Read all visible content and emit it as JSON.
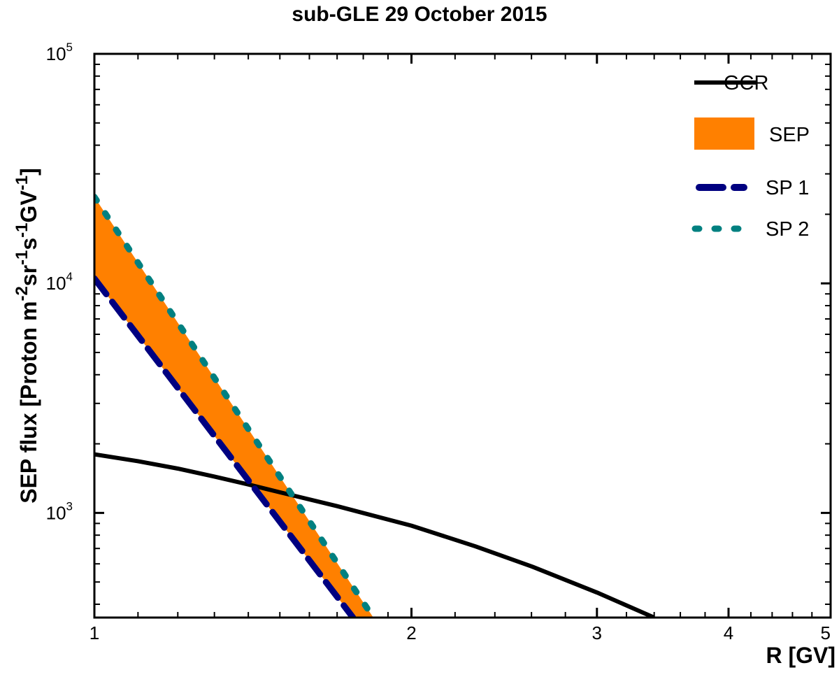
{
  "chart_data": {
    "type": "line",
    "title": "sub-GLE 29 October 2015",
    "xlabel": "R [GV]",
    "ylabel": {
      "prefix": "SEP flux [Proton m",
      "parts": [
        {
          "sup": "-2",
          "text": "sr"
        },
        {
          "sup": "-1",
          "text": "s"
        },
        {
          "sup": "-1",
          "text": "GV"
        },
        {
          "sup": "-1",
          "text": "]"
        }
      ]
    },
    "x_scale": "log",
    "y_scale": "log",
    "xlim": [
      1,
      5
    ],
    "ylim": [
      350,
      100000
    ],
    "x_ticks": [
      {
        "value": 1,
        "label": "1"
      },
      {
        "value": 2,
        "label": "2"
      },
      {
        "value": 3,
        "label": "3"
      },
      {
        "value": 4,
        "label": "4"
      },
      {
        "value": 5,
        "label": "5"
      }
    ],
    "x_minor_ticks": [
      1.1,
      1.2,
      1.3,
      1.4,
      1.5,
      1.6,
      1.7,
      1.8,
      1.9,
      2.2,
      2.4,
      2.6,
      2.8,
      3.2,
      3.4,
      3.6,
      3.8,
      4.2,
      4.4,
      4.6,
      4.8
    ],
    "y_ticks": [
      {
        "value": 1000,
        "base": "10",
        "exp": "3"
      },
      {
        "value": 10000,
        "base": "10",
        "exp": "4"
      },
      {
        "value": 100000,
        "base": "10",
        "exp": "5"
      }
    ],
    "y_minor_ticks": [
      400,
      500,
      600,
      700,
      800,
      900,
      2000,
      3000,
      4000,
      5000,
      6000,
      7000,
      8000,
      9000,
      20000,
      30000,
      40000,
      50000,
      60000,
      70000,
      80000,
      90000
    ],
    "legend_position": "top-right",
    "series": [
      {
        "name": "GCR",
        "style": "solid",
        "color": "#000000",
        "points": [
          [
            1.0,
            1800
          ],
          [
            1.1,
            1680
          ],
          [
            1.2,
            1560
          ],
          [
            1.3,
            1440
          ],
          [
            1.4,
            1330
          ],
          [
            1.5,
            1230
          ],
          [
            1.7,
            1070
          ],
          [
            2.0,
            880
          ],
          [
            2.3,
            715
          ],
          [
            2.6,
            585
          ],
          [
            3.0,
            450
          ],
          [
            3.4,
            350
          ]
        ]
      },
      {
        "name": "SEP",
        "style": "band",
        "color": "#ff8000",
        "lower": [
          [
            1.0,
            10500
          ],
          [
            1.76,
            350
          ]
        ],
        "upper": [
          [
            1.0,
            23800
          ],
          [
            1.84,
            350
          ]
        ]
      },
      {
        "name": "SP 1",
        "style": "dashed",
        "color": "#000080",
        "points": [
          [
            1.0,
            10500
          ],
          [
            1.76,
            350
          ]
        ]
      },
      {
        "name": "SP 2",
        "style": "dotted",
        "color": "#008080",
        "points": [
          [
            1.0,
            23800
          ],
          [
            1.84,
            350
          ]
        ]
      }
    ]
  }
}
